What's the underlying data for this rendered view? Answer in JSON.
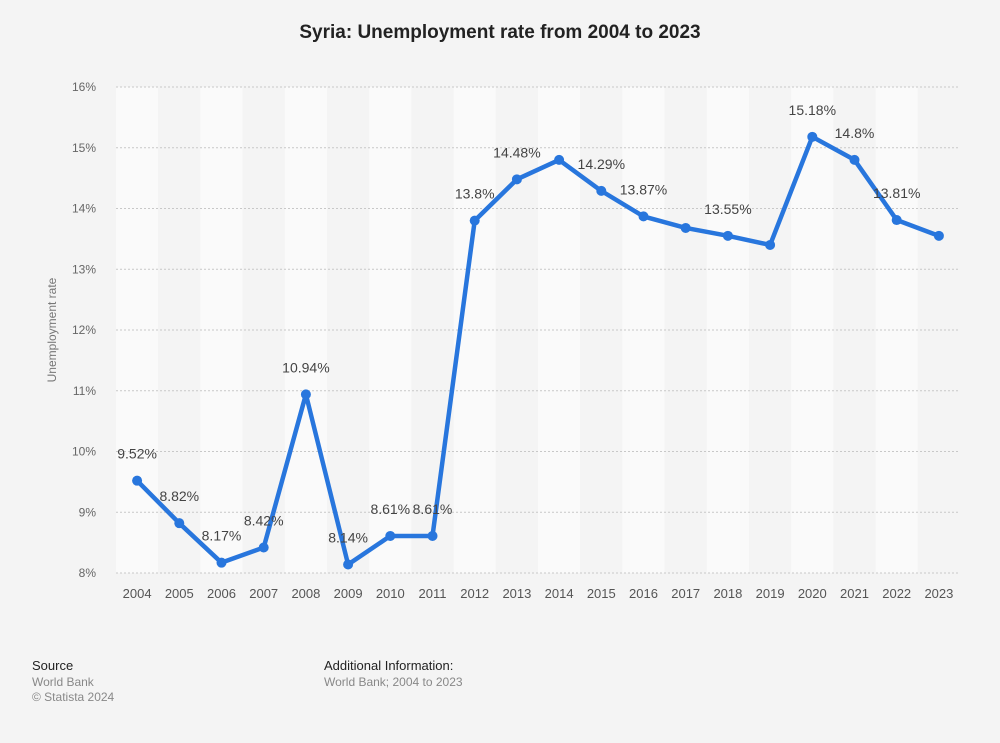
{
  "chart_data": {
    "type": "line",
    "title": "Syria: Unemployment rate from 2004 to 2023",
    "xlabel": "",
    "ylabel": "Unemployment rate",
    "categories": [
      "2004",
      "2005",
      "2006",
      "2007",
      "2008",
      "2009",
      "2010",
      "2011",
      "2012",
      "2013",
      "2014",
      "2015",
      "2016",
      "2017",
      "2018",
      "2019",
      "2020",
      "2021",
      "2022",
      "2023"
    ],
    "values": [
      9.52,
      8.82,
      8.17,
      8.42,
      10.94,
      8.14,
      8.61,
      8.61,
      13.8,
      14.48,
      14.8,
      14.29,
      13.87,
      13.68,
      13.55,
      13.4,
      15.18,
      14.8,
      13.81,
      13.55
    ],
    "data_labels": [
      "9.52%",
      "8.82%",
      "8.17%",
      "8.42%",
      "10.94%",
      "8.14%",
      "8.61%",
      "8.61%",
      "13.8%",
      "14.48%",
      null,
      "14.29%",
      "13.87%",
      null,
      "13.55%",
      null,
      "15.18%",
      "14.8%",
      "13.81%",
      null
    ],
    "ylim": [
      8,
      16
    ],
    "yticks": [
      "8%",
      "9%",
      "10%",
      "11%",
      "12%",
      "13%",
      "14%",
      "15%",
      "16%"
    ],
    "grid": true,
    "color": "#2876dd"
  },
  "footer": {
    "source_heading": "Source",
    "source": "World Bank",
    "copyright": "© Statista 2024",
    "info_heading": "Additional Information:",
    "info": "World Bank; 2004 to 2023"
  }
}
